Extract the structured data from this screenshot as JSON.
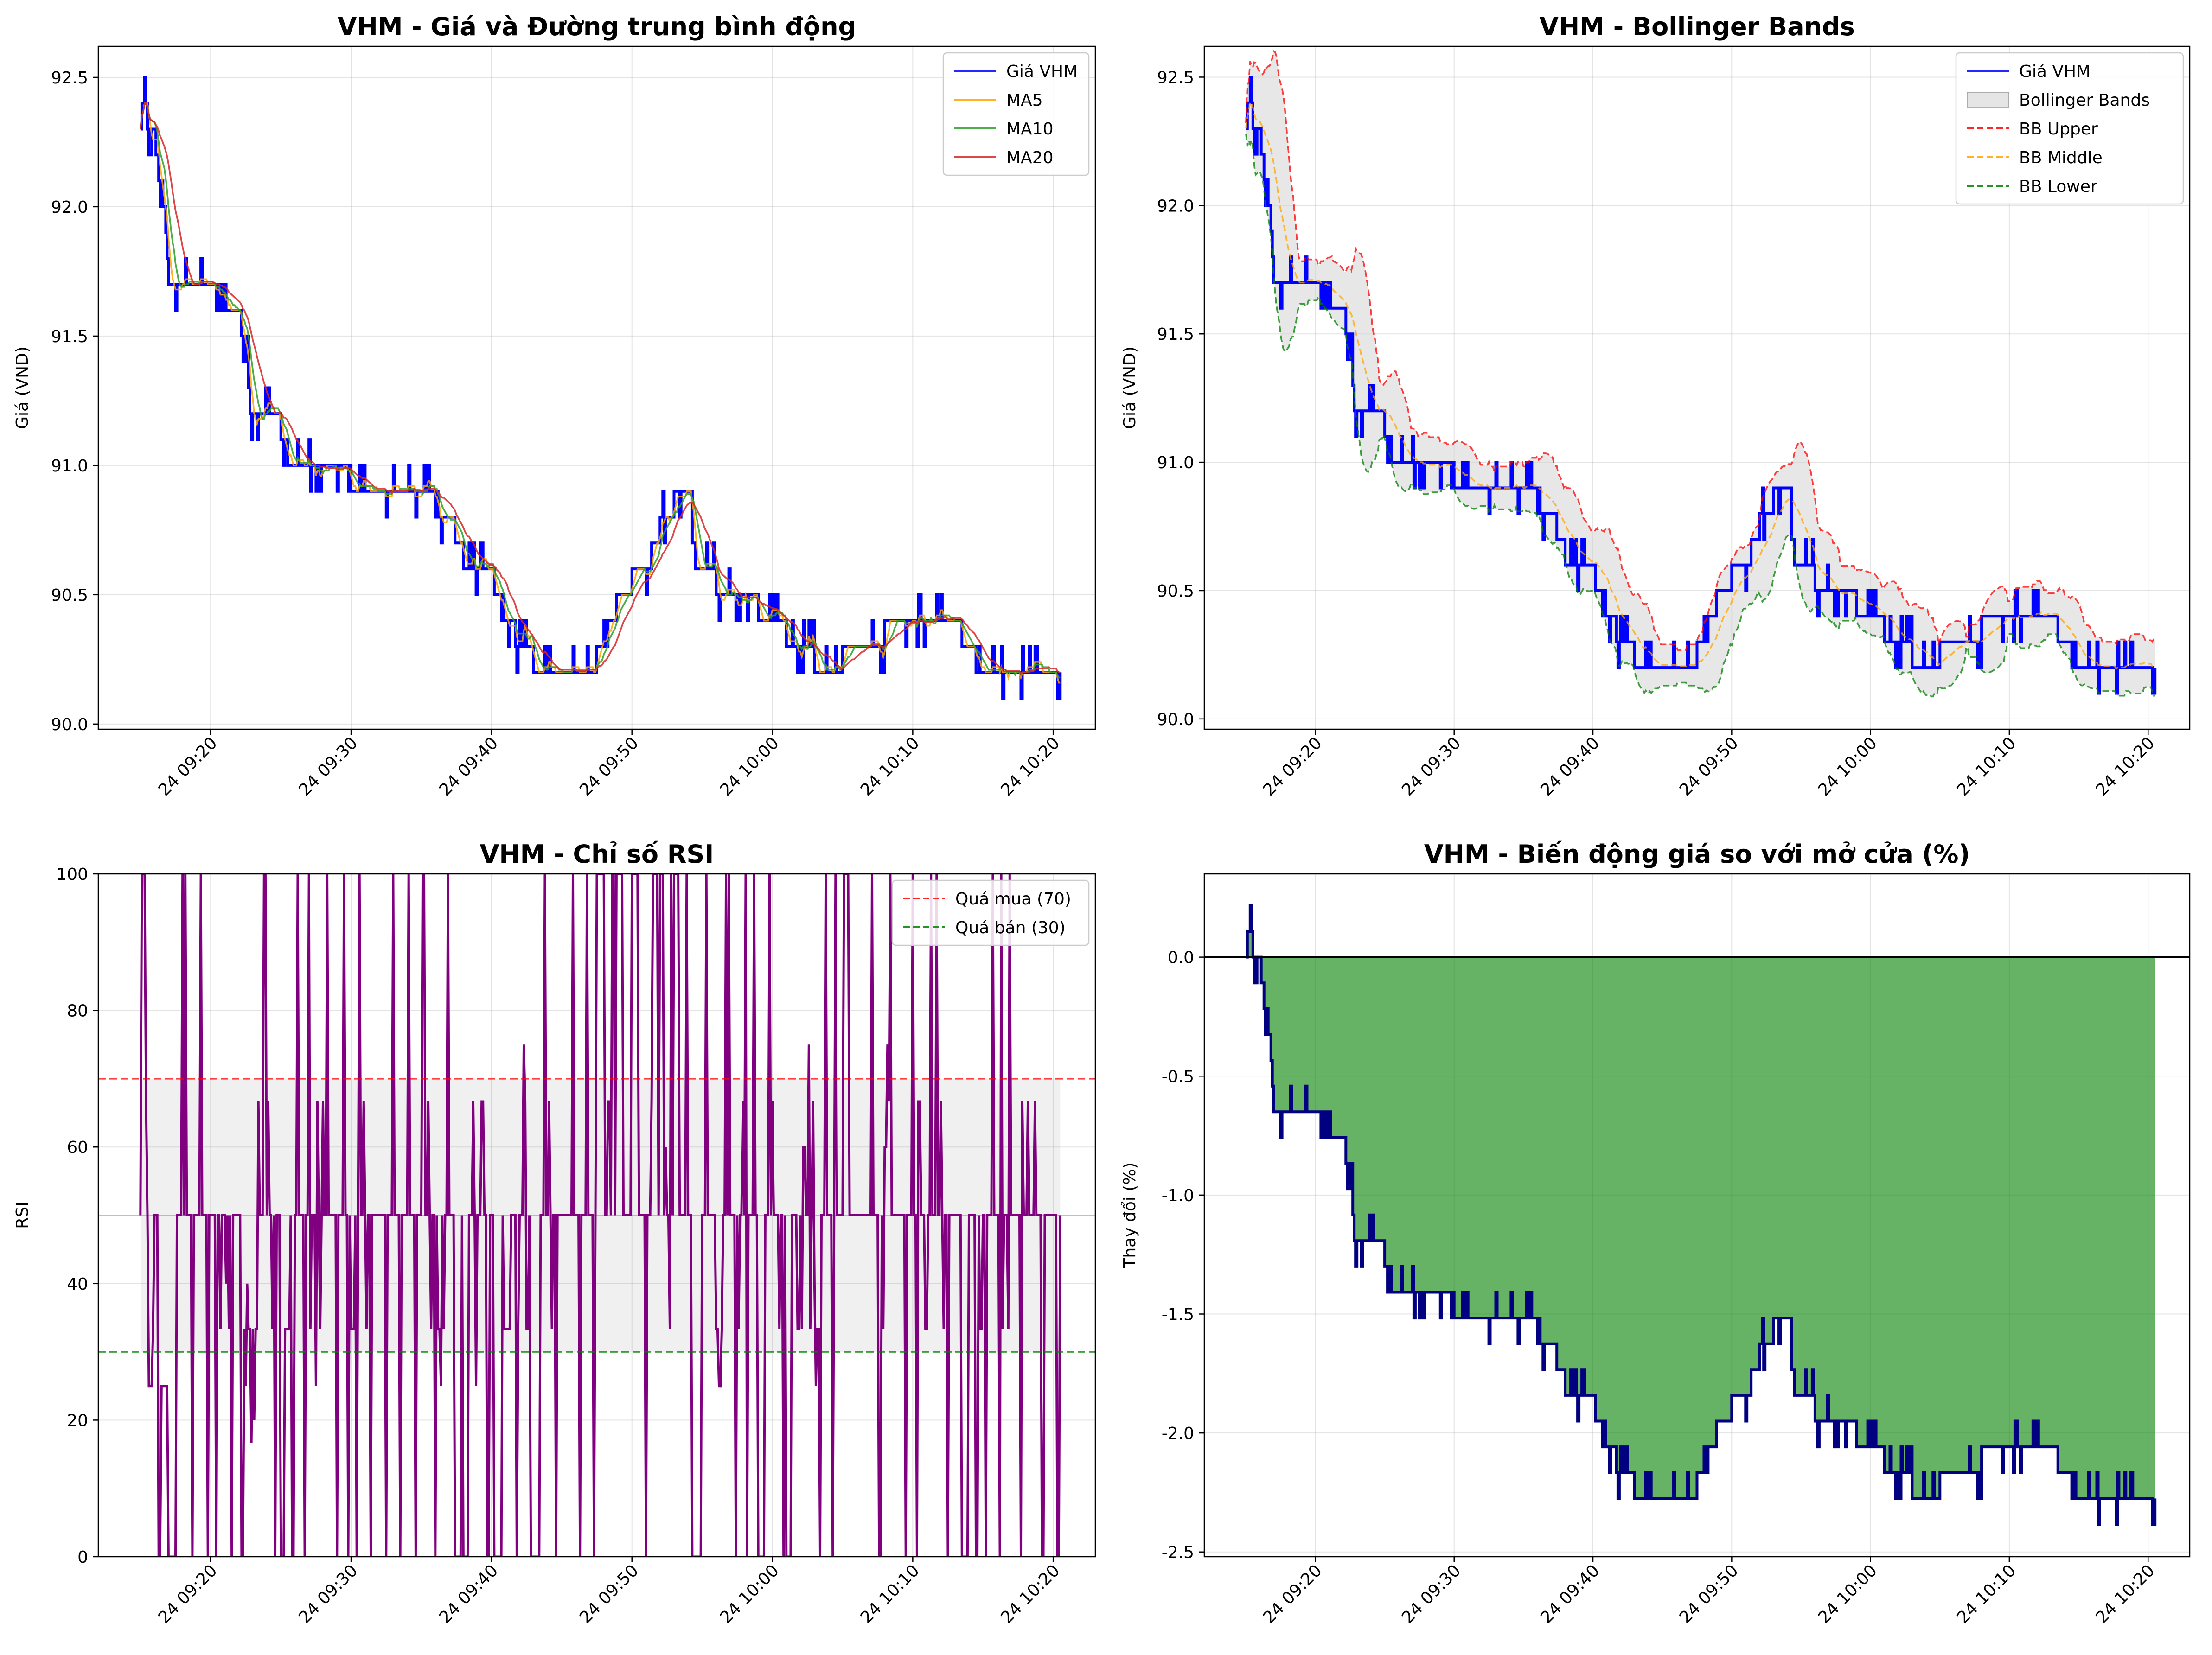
{
  "colors": {
    "price": "#0000ff",
    "ma5": "#ffa500",
    "ma10": "#2ca02c",
    "ma20": "#d62728",
    "bb_upper": "#ff0000",
    "bb_middle": "#ffa500",
    "bb_lower": "#008000",
    "band_fill": "#d3d3d3",
    "rsi": "#800080",
    "change_line": "#000080",
    "change_fill": "#008000",
    "grid": "#b0b0b0"
  },
  "xaxis": {
    "range": [
      "09:12",
      "10:23"
    ],
    "ticks": [
      {
        "t": "09:20",
        "label": "24 09:20"
      },
      {
        "t": "09:30",
        "label": "24 09:30"
      },
      {
        "t": "09:40",
        "label": "24 09:40"
      },
      {
        "t": "09:50",
        "label": "24 09:50"
      },
      {
        "t": "10:00",
        "label": "24 10:00"
      },
      {
        "t": "10:10",
        "label": "24 10:10"
      },
      {
        "t": "10:20",
        "label": "24 10:20"
      }
    ]
  },
  "price_anchors": [
    [
      "09:15",
      92.3
    ],
    [
      "09:15.3",
      92.5
    ],
    [
      "09:15.6",
      92.2
    ],
    [
      "09:16",
      92.3
    ],
    [
      "09:16.3",
      92.0
    ],
    [
      "09:16.6",
      92.1
    ],
    [
      "09:17",
      91.7
    ],
    [
      "09:18",
      91.65
    ],
    [
      "09:19",
      91.7
    ],
    [
      "09:20",
      91.75
    ],
    [
      "09:21",
      91.6
    ],
    [
      "09:22",
      91.6
    ],
    [
      "09:22.5",
      91.45
    ],
    [
      "09:23",
      91.2
    ],
    [
      "09:25",
      91.15
    ],
    [
      "09:26",
      90.95
    ],
    [
      "09:27",
      91.0
    ],
    [
      "09:29",
      91.0
    ],
    [
      "09:31",
      90.9
    ],
    [
      "09:33",
      90.95
    ],
    [
      "09:35",
      90.9
    ],
    [
      "09:37",
      90.8
    ],
    [
      "09:38",
      90.65
    ],
    [
      "09:40",
      90.55
    ],
    [
      "09:41",
      90.4
    ],
    [
      "09:43",
      90.25
    ],
    [
      "09:45",
      90.2
    ],
    [
      "09:46",
      90.25
    ],
    [
      "09:47",
      90.2
    ],
    [
      "09:48",
      90.3
    ],
    [
      "09:49",
      90.5
    ],
    [
      "09:51",
      90.6
    ],
    [
      "09:52",
      90.75
    ],
    [
      "09:53",
      90.85
    ],
    [
      "09:54",
      90.95
    ],
    [
      "09:54.5",
      90.6
    ],
    [
      "09:55",
      90.6
    ],
    [
      "09:56",
      90.55
    ],
    [
      "09:58",
      90.5
    ],
    [
      "10:00",
      90.4
    ],
    [
      "10:02",
      90.3
    ],
    [
      "10:04",
      90.2
    ],
    [
      "10:06",
      90.3
    ],
    [
      "10:08",
      90.35
    ],
    [
      "10:09",
      90.4
    ],
    [
      "10:13",
      90.4
    ],
    [
      "10:14",
      90.3
    ],
    [
      "10:15",
      90.2
    ],
    [
      "10:18",
      90.2
    ],
    [
      "10:20",
      90.2
    ],
    [
      "10:20.5",
      90.1
    ]
  ],
  "panels": [
    {
      "id": "price_ma",
      "title": "VHM - Giá và Đường trung bình động",
      "ylabel": "Giá (VND)",
      "ylim": [
        89.98,
        92.62
      ],
      "yticks": [
        {
          "v": 90.0,
          "label": "90.0"
        },
        {
          "v": 90.5,
          "label": "90.5"
        },
        {
          "v": 91.0,
          "label": "91.0"
        },
        {
          "v": 91.5,
          "label": "91.5"
        },
        {
          "v": 92.0,
          "label": "92.0"
        },
        {
          "v": 92.5,
          "label": "92.5"
        }
      ],
      "legend": [
        {
          "label": "Giá VHM",
          "color": "#0000ff",
          "style": "solid"
        },
        {
          "label": "MA5",
          "color": "#ffa500",
          "style": "solid"
        },
        {
          "label": "MA10",
          "color": "#2ca02c",
          "style": "solid"
        },
        {
          "label": "MA20",
          "color": "#d62728",
          "style": "solid"
        }
      ]
    },
    {
      "id": "bollinger",
      "title": "VHM - Bollinger Bands",
      "ylabel": "Giá (VND)",
      "ylim": [
        89.96,
        92.62
      ],
      "yticks": [
        {
          "v": 90.0,
          "label": "90.0"
        },
        {
          "v": 90.5,
          "label": "90.5"
        },
        {
          "v": 91.0,
          "label": "91.0"
        },
        {
          "v": 91.5,
          "label": "91.5"
        },
        {
          "v": 92.0,
          "label": "92.0"
        },
        {
          "v": 92.5,
          "label": "92.5"
        }
      ],
      "legend": [
        {
          "label": "Giá VHM",
          "color": "#0000ff",
          "style": "solid"
        },
        {
          "label": "Bollinger Bands",
          "color": "#d3d3d3",
          "style": "patch"
        },
        {
          "label": "BB Upper",
          "color": "#ff0000",
          "style": "dashed"
        },
        {
          "label": "BB Middle",
          "color": "#ffa500",
          "style": "dashed"
        },
        {
          "label": "BB Lower",
          "color": "#008000",
          "style": "dashed"
        }
      ]
    },
    {
      "id": "rsi",
      "title": "VHM - Chỉ số RSI",
      "ylabel": "RSI",
      "ylim": [
        0,
        100
      ],
      "yticks": [
        {
          "v": 0,
          "label": "0"
        },
        {
          "v": 20,
          "label": "20"
        },
        {
          "v": 40,
          "label": "40"
        },
        {
          "v": 60,
          "label": "60"
        },
        {
          "v": 80,
          "label": "80"
        },
        {
          "v": 100,
          "label": "100"
        }
      ],
      "overbought": 70,
      "oversold": 30,
      "midline": 50,
      "legend": [
        {
          "label": "Quá mua (70)",
          "color": "#ff0000",
          "style": "dashed"
        },
        {
          "label": "Quá bán (30)",
          "color": "#008000",
          "style": "dashed"
        }
      ]
    },
    {
      "id": "change",
      "title": "VHM - Biến động giá so với mở cửa (%)",
      "ylabel": "Thay đổi (%)",
      "ylim": [
        -2.52,
        0.35
      ],
      "yticks": [
        {
          "v": -2.5,
          "label": "-2.5"
        },
        {
          "v": -2.0,
          "label": "-2.0"
        },
        {
          "v": -1.5,
          "label": "-1.5"
        },
        {
          "v": -1.0,
          "label": "-1.0"
        },
        {
          "v": -0.5,
          "label": "-0.5"
        },
        {
          "v": 0.0,
          "label": "0.0"
        }
      ],
      "open_price": 92.3,
      "legend": []
    }
  ]
}
